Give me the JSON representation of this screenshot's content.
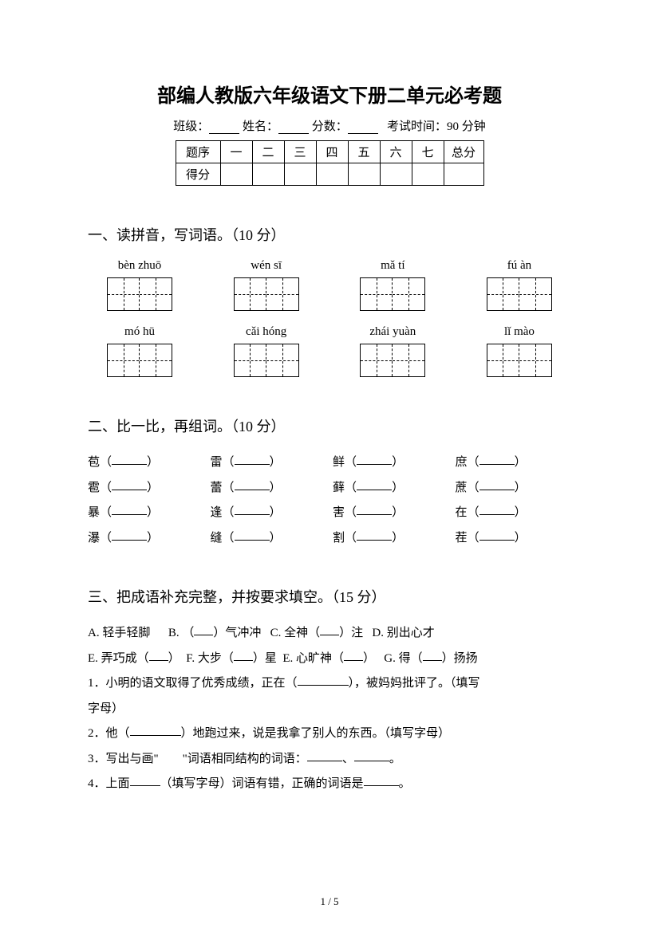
{
  "title": "部编人教版六年级语文下册二单元必考题",
  "info": {
    "class_label": "班级：",
    "name_label": "姓名：",
    "score_label": "分数：",
    "time_label": "考试时间：90 分钟"
  },
  "score_table": {
    "row_label": "题序",
    "score_row_label": "得分",
    "cols": [
      "一",
      "二",
      "三",
      "四",
      "五",
      "六",
      "七"
    ],
    "total_label": "总分"
  },
  "section1": {
    "heading": "一、读拼音，写词语。（10 分）",
    "row1": [
      {
        "pinyin": "bèn zhuō",
        "chars": 2
      },
      {
        "pinyin": "wén sī",
        "chars": 2
      },
      {
        "pinyin": "mǎ tí",
        "chars": 2
      },
      {
        "pinyin": "fú àn",
        "chars": 2
      }
    ],
    "row2": [
      {
        "pinyin": "mó hū",
        "chars": 2
      },
      {
        "pinyin": "cǎi hóng",
        "chars": 2
      },
      {
        "pinyin": "zhái yuàn",
        "chars": 2
      },
      {
        "pinyin": "lǐ mào",
        "chars": 2
      }
    ]
  },
  "section2": {
    "heading": "二、比一比，再组词。（10 分）",
    "rows": [
      [
        "苞",
        "雷",
        "鲜",
        "庶"
      ],
      [
        "雹",
        "蕾",
        "藓",
        "蔗"
      ],
      [
        "暴",
        "逢",
        "害",
        "在"
      ],
      [
        "瀑",
        "缝",
        "割",
        "茬"
      ]
    ]
  },
  "section3": {
    "heading": "三、把成语补充完整，并按要求填空。（15 分）",
    "items_line1": {
      "A": "A. 轻手轻脚",
      "B_pre": "B. （",
      "B_post": "）气冲冲",
      "C_pre": "C. 全神（",
      "C_post": "）注",
      "D": "D. 别出心才"
    },
    "items_line2": {
      "E_pre": "E. 弄巧成（",
      "E_post": "）",
      "F_pre": "F. 大步（",
      "F_post": "）星",
      "E2_pre": "E. 心旷神（",
      "E2_post": "）",
      "G_pre": "G. 得（",
      "G_post": "）扬扬"
    },
    "q1_pre": "1．小明的语文取得了优秀成绩，正在（",
    "q1_post": "），被妈妈批评了。（填写",
    "q1_tail": "字母）",
    "q2_pre": "2．他（",
    "q2_post": "）地跑过来，说是我拿了别人的东西。（填写字母）",
    "q3_pre": "3．写出与画\"　　\"词语相同结构的词语：",
    "q3_sep": "、",
    "q3_end": "。",
    "q4_pre": "4．上面",
    "q4_mid": "（填写字母）词语有错，正确的词语是",
    "q4_end": "。"
  },
  "footer": "1 / 5"
}
